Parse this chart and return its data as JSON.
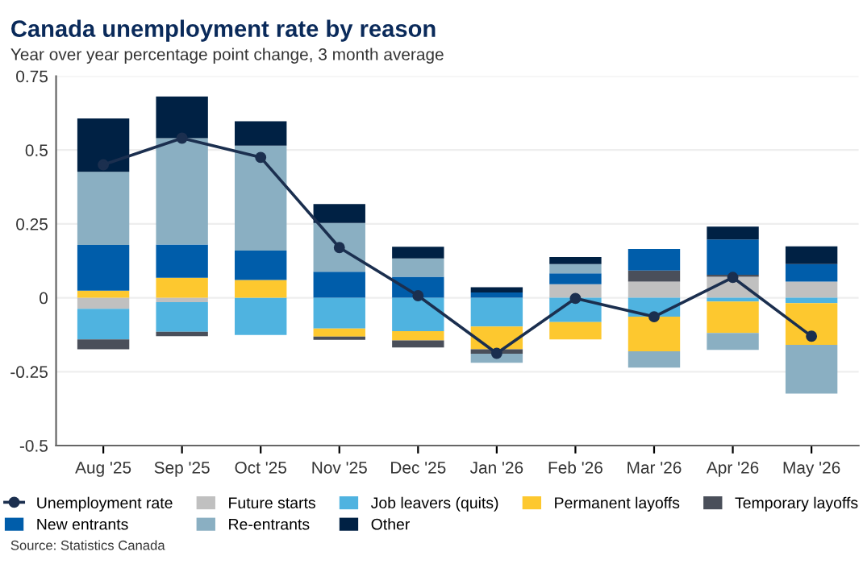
{
  "chart_data": {
    "type": "bar",
    "stacked": true,
    "title": "Canada unemployment rate by reason",
    "subtitle": "Year over year percentage point change, 3 month average",
    "categories": [
      "Aug '25",
      "Sep '25",
      "Oct '25",
      "Nov '25",
      "Dec '25",
      "Jan '26",
      "Feb '26",
      "Mar '26",
      "Apr '26",
      "May '26"
    ],
    "series": [
      {
        "name": "Unemployment rate",
        "type": "line",
        "color": "#1b2f4f",
        "marker": "circle",
        "values": [
          0.45,
          0.54,
          0.475,
          0.17,
          0.007,
          -0.188,
          -0.002,
          -0.064,
          0.069,
          -0.13
        ]
      },
      {
        "name": "Future starts",
        "color": "#c0c0c0",
        "values": [
          -0.037,
          -0.015,
          0,
          0,
          0,
          0,
          0.046,
          0.055,
          0.071,
          0.055
        ]
      },
      {
        "name": "Job leavers (quits)",
        "color": "#4fb3e0",
        "values": [
          -0.104,
          -0.1,
          -0.126,
          -0.104,
          -0.113,
          -0.097,
          -0.082,
          -0.064,
          -0.013,
          -0.018
        ]
      },
      {
        "name": "Permanent layoffs",
        "color": "#fdc82f",
        "values": [
          0.024,
          0.068,
          0.06,
          -0.027,
          -0.031,
          -0.077,
          -0.059,
          -0.117,
          -0.106,
          -0.141
        ]
      },
      {
        "name": "Temporary layoffs",
        "color": "#4a4f5a",
        "values": [
          -0.033,
          -0.015,
          0,
          -0.011,
          -0.024,
          -0.015,
          0,
          0.037,
          0.007,
          0
        ]
      },
      {
        "name": "New entrants",
        "color": "#005daa",
        "values": [
          0.155,
          0.112,
          0.1,
          0.088,
          0.071,
          0.018,
          0.037,
          0.073,
          0.119,
          0.059
        ]
      },
      {
        "name": "Re-entrants",
        "color": "#8aafc2",
        "values": [
          0.247,
          0.36,
          0.355,
          0.165,
          0.062,
          -0.031,
          0.031,
          -0.055,
          -0.057,
          -0.165
        ]
      },
      {
        "name": "Other",
        "color": "#002144",
        "values": [
          0.181,
          0.141,
          0.082,
          0.064,
          0.04,
          0.018,
          0.024,
          0,
          0.044,
          0.06
        ]
      }
    ],
    "ylim": [
      -0.5,
      0.75
    ],
    "yticks": [
      -0.5,
      -0.25,
      0,
      0.25,
      0.5,
      0.75
    ],
    "grid": "y",
    "legend": "bottom",
    "annotations": [
      "Source: Statistics Canada"
    ]
  }
}
